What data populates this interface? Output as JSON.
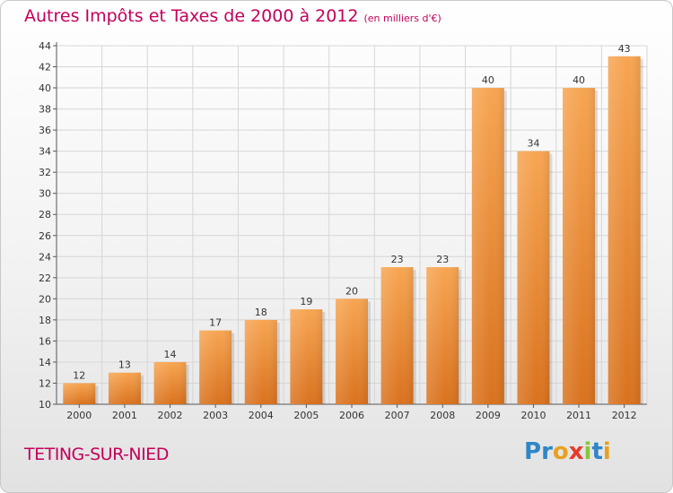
{
  "header": {
    "title": "Autres Impôts et Taxes de 2000 à 2012",
    "unit": "(en milliers d'€)"
  },
  "footer": {
    "commune": "TETING-SUR-NIED",
    "logo": "Proxiti"
  },
  "colors": {
    "title": "#c4005a",
    "bar_light": "#f7a552",
    "bar_dark": "#d9721e",
    "logo_letters": [
      "#2e86c8",
      "#2e86c8",
      "#e8a020",
      "#e83a2a",
      "#8ac43a",
      "#2e86c8",
      "#e8a020"
    ]
  },
  "chart_data": {
    "type": "bar",
    "title": "Autres Impôts et Taxes de 2000 à 2012",
    "xlabel": "",
    "ylabel": "",
    "categories": [
      "2000",
      "2001",
      "2002",
      "2003",
      "2004",
      "2005",
      "2006",
      "2007",
      "2008",
      "2009",
      "2010",
      "2011",
      "2012"
    ],
    "values": [
      12,
      13,
      14,
      17,
      18,
      19,
      20,
      23,
      23,
      40,
      34,
      40,
      43
    ],
    "ylim": [
      10,
      44
    ],
    "yticks": [
      10,
      12,
      14,
      16,
      18,
      20,
      22,
      24,
      26,
      28,
      30,
      32,
      34,
      36,
      38,
      40,
      42,
      44
    ],
    "grid": true
  }
}
